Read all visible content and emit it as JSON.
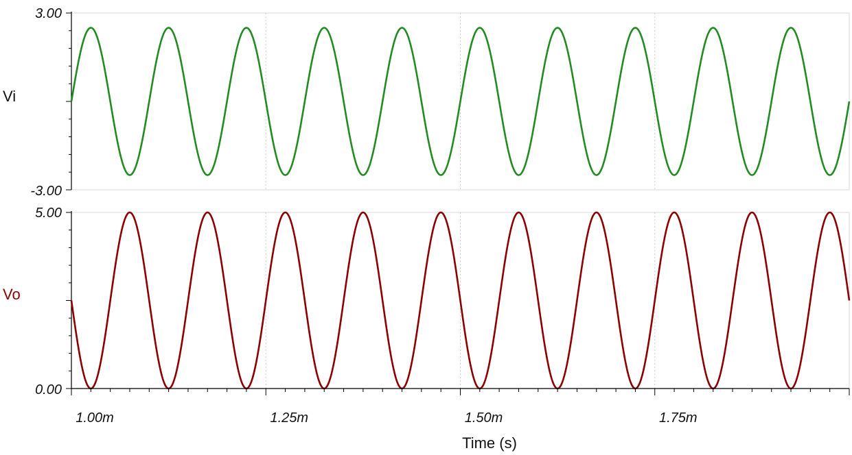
{
  "chart_data": {
    "type": "line",
    "xlabel": "Time (s)",
    "xlim": [
      1.0,
      2.0
    ],
    "xticks": [
      "1.00m",
      "1.25m",
      "1.50m",
      "1.75m"
    ],
    "xtick_values": [
      1.0,
      1.25,
      1.5,
      1.75
    ],
    "x_unit_scale": "milliseconds",
    "grid": "vertical-dotted",
    "panels": [
      {
        "name": "Vi",
        "color": "#228b22",
        "ylim": [
          -3.0,
          3.0
        ],
        "ytick_labels": [
          "3.00",
          "-3.00"
        ],
        "function": "sine",
        "amplitude": 2.5,
        "offset": 0.0,
        "frequency_per_ms": 10,
        "phase_start": "zero-rising"
      },
      {
        "name": "Vo",
        "color": "#8b0000",
        "ylim": [
          0.0,
          5.0
        ],
        "ytick_labels": [
          "5.00",
          "0.00"
        ],
        "function": "sine",
        "amplitude": 2.5,
        "offset": 2.5,
        "frequency_per_ms": 10,
        "phase_start": "midpoint-falling"
      }
    ]
  }
}
